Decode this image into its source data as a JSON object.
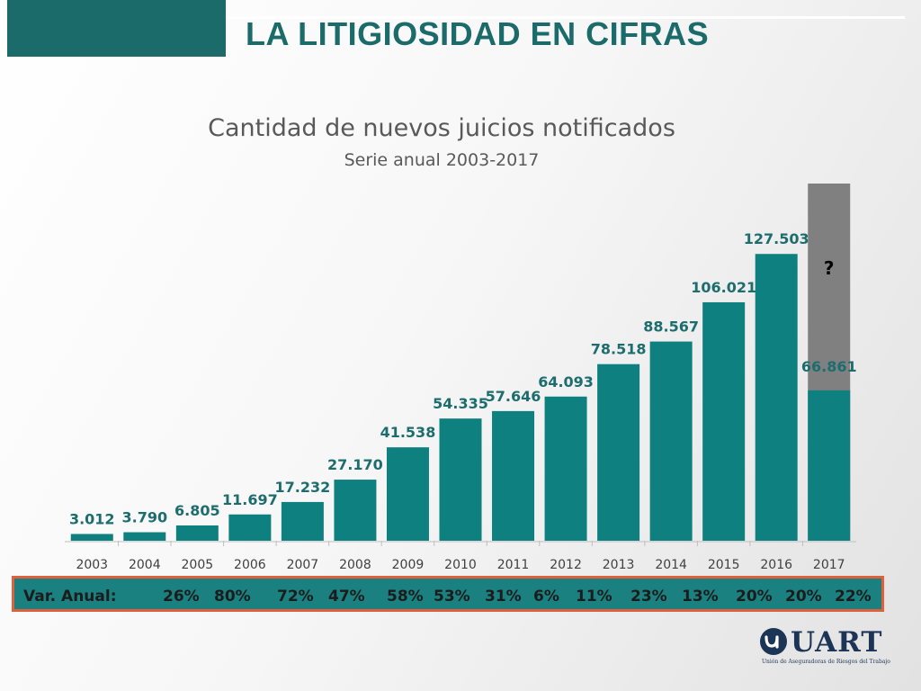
{
  "slide": {
    "title": "LA LITIGIOSIDAD EN CIFRAS"
  },
  "chart_data": {
    "type": "bar",
    "title": "Cantidad de nuevos juicios notificados",
    "subtitle": "Serie anual 2003-2017",
    "categories": [
      "2003",
      "2004",
      "2005",
      "2006",
      "2007",
      "2008",
      "2009",
      "2010",
      "2011",
      "2012",
      "2013",
      "2014",
      "2015",
      "2016",
      "2017"
    ],
    "values": [
      3012,
      3790,
      6805,
      11697,
      17232,
      27170,
      41538,
      54335,
      57646,
      64093,
      78518,
      88567,
      106021,
      127503,
      66861
    ],
    "value_labels": [
      "3.012",
      "3.790",
      "6.805",
      "11.697",
      "17.232",
      "27.170",
      "41.538",
      "54.335",
      "57.646",
      "64.093",
      "78.518",
      "88.567",
      "106.021",
      "127.503",
      "66.861"
    ],
    "ylim": [
      0,
      140000
    ],
    "grid": false,
    "colors": {
      "bar": "#0f8080",
      "projection": "#808080",
      "label": "#1d6d6f"
    },
    "projection": {
      "category": "2017",
      "label": "?"
    }
  },
  "var_anual": {
    "label": "Var. Anual:",
    "values": [
      "26%",
      "80%",
      "72%",
      "47%",
      "58%",
      "53%",
      "31%",
      "6%",
      "11%",
      "23%",
      "13%",
      "20%",
      "20%",
      "22%"
    ]
  },
  "logo": {
    "name": "UART",
    "subtitle": "Unión de Aseguradoras de Riesgos del Trabajo"
  }
}
